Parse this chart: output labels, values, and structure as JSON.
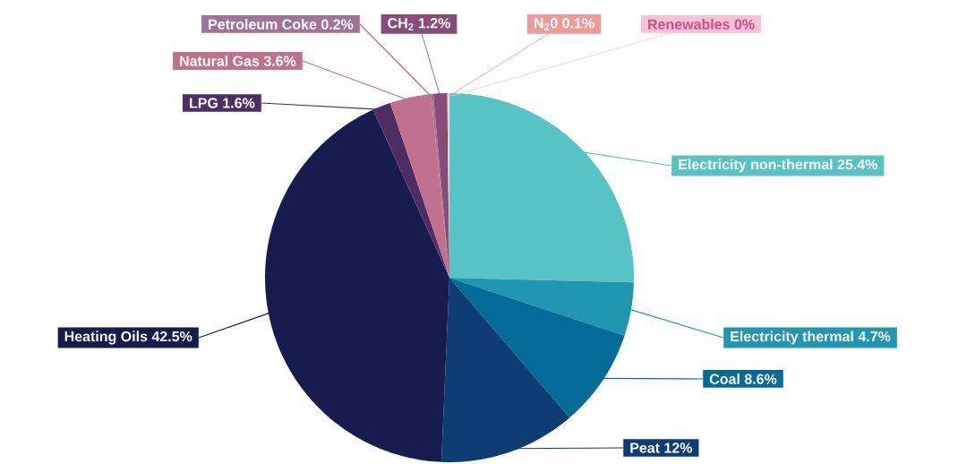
{
  "chart_data": {
    "type": "pie",
    "categories": [
      "Electricity non-thermal",
      "Electricity thermal",
      "Coal",
      "Peat",
      "Heating Oils",
      "LPG",
      "Natural Gas",
      "Petroleum Coke",
      "CH$_{2}$",
      "N$_{2}$0",
      "Renewables"
    ],
    "values": [
      25.4,
      4.7,
      8.6,
      12,
      42.5,
      1.6,
      3.6,
      0.2,
      1.2,
      0.1,
      0
    ],
    "colors": [
      "#57c3c4",
      "#2196b0",
      "#046b98",
      "#0e3d73",
      "#161c4e",
      "#4e2d65",
      "#c0718e",
      "#a0729a",
      "#874c7a",
      "#ee9a9a",
      "#f9c0d8"
    ],
    "value_labels": [
      "25.4%",
      "4.7%",
      "8.6%",
      "12%",
      "42.5%",
      "1.6%",
      "3.6%",
      "0.2%",
      "1.2%",
      "0.1%",
      "0%"
    ]
  }
}
